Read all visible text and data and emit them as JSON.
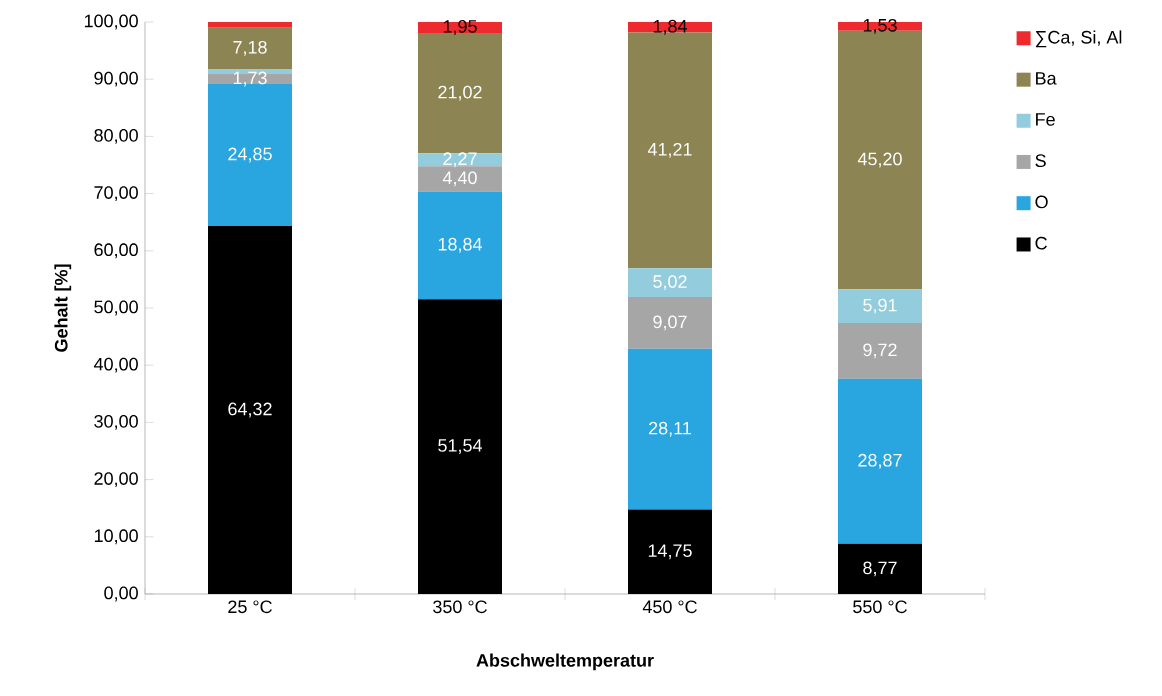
{
  "chart_data": {
    "type": "bar",
    "stacked": true,
    "xlabel": "Abschweltemperatur",
    "ylabel": "Gehalt [%]",
    "categories": [
      "25 °C",
      "350 °C",
      "450 °C",
      "550 °C"
    ],
    "series": [
      {
        "name": "C",
        "color": "#000000",
        "values": [
          64.32,
          51.54,
          14.75,
          8.77
        ],
        "value_labels": [
          "64,32",
          "51,54",
          "14,75",
          "8,77"
        ]
      },
      {
        "name": "O",
        "color": "#29a5e0",
        "values": [
          24.85,
          18.84,
          28.11,
          28.87
        ],
        "value_labels": [
          "24,85",
          "18,84",
          "28,11",
          "28,87"
        ]
      },
      {
        "name": "S",
        "color": "#a6a6a6",
        "values": [
          1.73,
          4.4,
          9.07,
          9.72
        ],
        "value_labels": [
          "1,73",
          "4,40",
          "9,07",
          "9,72"
        ]
      },
      {
        "name": "Fe",
        "color": "#93cddd",
        "values": [
          0.9,
          2.27,
          5.02,
          5.91
        ],
        "value_labels": [
          null,
          "2,27",
          "5,02",
          "5,91"
        ]
      },
      {
        "name": "Ba",
        "color": "#8c8453",
        "values": [
          7.18,
          21.02,
          41.21,
          45.2
        ],
        "value_labels": [
          "7,18",
          "21,02",
          "41,21",
          "45,20"
        ]
      },
      {
        "name": "∑Ca, Si, Al",
        "color": "#ee2a2e",
        "values": [
          1.0,
          1.95,
          1.84,
          1.53
        ],
        "value_labels": [
          null,
          "1,95",
          "1,84",
          "1,53"
        ]
      }
    ],
    "ylim": [
      0,
      100
    ],
    "yticks": [
      {
        "value": 0,
        "label": "0,00"
      },
      {
        "value": 10,
        "label": "10,00"
      },
      {
        "value": 20,
        "label": "20,00"
      },
      {
        "value": 30,
        "label": "30,00"
      },
      {
        "value": 40,
        "label": "40,00"
      },
      {
        "value": 50,
        "label": "50,00"
      },
      {
        "value": 60,
        "label": "60,00"
      },
      {
        "value": 70,
        "label": "70,00"
      },
      {
        "value": 80,
        "label": "80,00"
      },
      {
        "value": 90,
        "label": "90,00"
      },
      {
        "value": 100,
        "label": "100,00"
      }
    ],
    "legend": "right"
  }
}
